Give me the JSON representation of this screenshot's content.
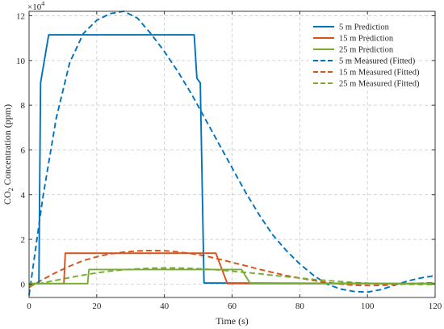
{
  "chart_data": {
    "type": "line",
    "title": "",
    "xlabel": "Time (s)",
    "ylabel_main": "CO",
    "ylabel_sub": "2",
    "ylabel_tail": " Concentration (ppm)",
    "y_multiplier_base": "×10",
    "y_multiplier_exp": "4",
    "xlim": [
      0,
      120
    ],
    "ylim": [
      -0.6,
      12.2
    ],
    "xticks": [
      0,
      20,
      40,
      60,
      80,
      100,
      120
    ],
    "yticks": [
      0,
      2,
      4,
      6,
      8,
      10,
      12
    ],
    "grid": true,
    "legend_position": "top-right",
    "colors": {
      "blue": "#0072BD",
      "orange": "#D95319",
      "green": "#77AC30"
    },
    "series": [
      {
        "name": "5 m Prediction",
        "color": "#0072BD",
        "style": "solid",
        "points": [
          [
            0,
            0.02
          ],
          [
            2.9,
            0.02
          ],
          [
            3.4,
            9.0
          ],
          [
            5.8,
            11.15
          ],
          [
            48.8,
            11.15
          ],
          [
            49.6,
            9.2
          ],
          [
            50.6,
            9.0
          ],
          [
            51.7,
            0.05
          ],
          [
            120,
            0.02
          ]
        ]
      },
      {
        "name": "15 m Prediction",
        "color": "#D95319",
        "style": "solid",
        "points": [
          [
            0,
            0.02
          ],
          [
            10.3,
            0.02
          ],
          [
            10.7,
            1.38
          ],
          [
            55.2,
            1.38
          ],
          [
            58.6,
            0.02
          ],
          [
            120,
            0.02
          ]
        ]
      },
      {
        "name": "25 m Prediction",
        "color": "#77AC30",
        "style": "solid",
        "points": [
          [
            0,
            0.02
          ],
          [
            17.3,
            0.02
          ],
          [
            17.7,
            0.65
          ],
          [
            62.8,
            0.65
          ],
          [
            65.4,
            0.02
          ],
          [
            120,
            0.02
          ]
        ]
      },
      {
        "name": "5 m Measured (Fitted)",
        "color": "#0072BD",
        "style": "dashed",
        "points": [
          [
            0,
            -0.5
          ],
          [
            4,
            3.8
          ],
          [
            8,
            7.4
          ],
          [
            12,
            9.9
          ],
          [
            16,
            11.2
          ],
          [
            20,
            11.8
          ],
          [
            24,
            12.1
          ],
          [
            28,
            12.2
          ],
          [
            32,
            11.9
          ],
          [
            36,
            11.2
          ],
          [
            40,
            10.4
          ],
          [
            44,
            9.5
          ],
          [
            48,
            8.5
          ],
          [
            52,
            7.4
          ],
          [
            56,
            6.3
          ],
          [
            60,
            5.2
          ],
          [
            64,
            4.1
          ],
          [
            68,
            3.1
          ],
          [
            72,
            2.2
          ],
          [
            76,
            1.5
          ],
          [
            80,
            0.9
          ],
          [
            84,
            0.4
          ],
          [
            88,
            0.0
          ],
          [
            92,
            -0.22
          ],
          [
            96,
            -0.33
          ],
          [
            100,
            -0.36
          ],
          [
            104,
            -0.25
          ],
          [
            108,
            -0.05
          ],
          [
            112,
            0.14
          ],
          [
            116,
            0.28
          ],
          [
            120,
            0.38
          ]
        ]
      },
      {
        "name": "15 m Measured (Fitted)",
        "color": "#D95319",
        "style": "dashed",
        "points": [
          [
            0,
            -0.15
          ],
          [
            4,
            0.2
          ],
          [
            8,
            0.52
          ],
          [
            12,
            0.8
          ],
          [
            16,
            1.05
          ],
          [
            20,
            1.22
          ],
          [
            24,
            1.35
          ],
          [
            28,
            1.43
          ],
          [
            32,
            1.48
          ],
          [
            36,
            1.5
          ],
          [
            40,
            1.49
          ],
          [
            44,
            1.44
          ],
          [
            48,
            1.36
          ],
          [
            52,
            1.26
          ],
          [
            56,
            1.12
          ],
          [
            60,
            0.97
          ],
          [
            64,
            0.82
          ],
          [
            68,
            0.66
          ],
          [
            72,
            0.52
          ],
          [
            76,
            0.38
          ],
          [
            80,
            0.27
          ],
          [
            84,
            0.16
          ],
          [
            88,
            0.07
          ],
          [
            92,
            0.0
          ],
          [
            96,
            -0.05
          ],
          [
            100,
            -0.07
          ],
          [
            104,
            -0.06
          ],
          [
            108,
            -0.03
          ],
          [
            112,
            0.01
          ],
          [
            116,
            0.04
          ],
          [
            120,
            0.06
          ]
        ]
      },
      {
        "name": "25 m Measured (Fitted)",
        "color": "#77AC30",
        "style": "dashed",
        "points": [
          [
            0,
            -0.08
          ],
          [
            4,
            0.05
          ],
          [
            8,
            0.17
          ],
          [
            12,
            0.29
          ],
          [
            16,
            0.4
          ],
          [
            20,
            0.5
          ],
          [
            24,
            0.58
          ],
          [
            28,
            0.64
          ],
          [
            32,
            0.68
          ],
          [
            36,
            0.71
          ],
          [
            40,
            0.72
          ],
          [
            44,
            0.72
          ],
          [
            48,
            0.7
          ],
          [
            52,
            0.67
          ],
          [
            56,
            0.63
          ],
          [
            60,
            0.58
          ],
          [
            64,
            0.52
          ],
          [
            68,
            0.46
          ],
          [
            72,
            0.39
          ],
          [
            76,
            0.33
          ],
          [
            80,
            0.27
          ],
          [
            84,
            0.21
          ],
          [
            88,
            0.16
          ],
          [
            92,
            0.11
          ],
          [
            96,
            0.07
          ],
          [
            100,
            0.04
          ],
          [
            104,
            0.02
          ],
          [
            108,
            0.0
          ],
          [
            112,
            -0.01
          ],
          [
            116,
            -0.02
          ],
          [
            120,
            -0.02
          ]
        ]
      }
    ]
  }
}
